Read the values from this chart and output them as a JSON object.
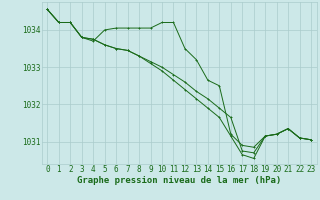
{
  "background_color": "#cce8e8",
  "grid_color": "#aacccc",
  "line_color": "#1a6b1a",
  "xlabel": "Graphe pression niveau de la mer (hPa)",
  "xlabel_fontsize": 6.5,
  "tick_fontsize": 5.5,
  "ylim": [
    1030.4,
    1034.75
  ],
  "xlim": [
    -0.5,
    23.5
  ],
  "yticks": [
    1031,
    1032,
    1033,
    1034
  ],
  "xticks": [
    0,
    1,
    2,
    3,
    4,
    5,
    6,
    7,
    8,
    9,
    10,
    11,
    12,
    13,
    14,
    15,
    16,
    17,
    18,
    19,
    20,
    21,
    22,
    23
  ],
  "series1": [
    1034.55,
    1034.2,
    1034.2,
    1033.8,
    1033.7,
    1034.0,
    1034.05,
    1034.05,
    1034.05,
    1034.05,
    1034.2,
    1034.2,
    1033.5,
    1033.2,
    1032.65,
    1032.5,
    1031.2,
    1030.9,
    1030.85,
    1031.15,
    1031.2,
    1031.35,
    1031.1,
    1031.05
  ],
  "series2": [
    1034.55,
    1034.2,
    1034.2,
    1033.8,
    1033.75,
    1033.6,
    1033.5,
    1033.45,
    1033.3,
    1033.15,
    1033.0,
    1032.8,
    1032.6,
    1032.35,
    1032.15,
    1031.9,
    1031.65,
    1030.75,
    1030.7,
    1031.15,
    1031.2,
    1031.35,
    1031.1,
    1031.05
  ],
  "series3": [
    1034.55,
    1034.2,
    1034.2,
    1033.8,
    1033.75,
    1033.6,
    1033.5,
    1033.45,
    1033.3,
    1033.1,
    1032.9,
    1032.65,
    1032.4,
    1032.15,
    1031.9,
    1031.65,
    1031.15,
    1030.65,
    1030.55,
    1031.15,
    1031.2,
    1031.35,
    1031.1,
    1031.05
  ]
}
